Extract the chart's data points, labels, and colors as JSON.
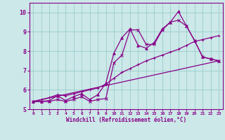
{
  "xlabel": "Windchill (Refroidissement éolien,°C)",
  "bg_color": "#cce8e8",
  "grid_color": "#99cccc",
  "line_color": "#880088",
  "xlim": [
    -0.5,
    23.5
  ],
  "ylim": [
    5.0,
    10.5
  ],
  "xticks": [
    0,
    1,
    2,
    3,
    4,
    5,
    6,
    7,
    8,
    9,
    10,
    11,
    12,
    13,
    14,
    15,
    16,
    17,
    18,
    19,
    20,
    21,
    22,
    23
  ],
  "yticks": [
    5,
    6,
    7,
    8,
    9,
    10
  ],
  "line1_x": [
    0,
    1,
    2,
    3,
    4,
    5,
    6,
    7,
    8,
    9,
    10,
    11,
    12,
    13,
    14,
    15,
    16,
    17,
    18,
    19,
    20,
    21,
    22,
    23
  ],
  "line1_y": [
    5.4,
    5.4,
    5.4,
    5.5,
    5.4,
    5.5,
    5.65,
    5.4,
    5.5,
    5.55,
    7.4,
    7.8,
    9.1,
    9.1,
    8.35,
    8.35,
    9.1,
    9.5,
    9.6,
    9.3,
    8.55,
    7.7,
    7.6,
    7.5
  ],
  "line2_x": [
    0,
    1,
    2,
    3,
    4,
    5,
    6,
    7,
    8,
    9,
    10,
    11,
    12,
    13,
    14,
    15,
    16,
    17,
    18,
    19,
    20,
    21,
    22,
    23
  ],
  "line2_y": [
    5.4,
    5.4,
    5.45,
    5.7,
    5.45,
    5.65,
    5.8,
    5.5,
    5.75,
    6.35,
    7.9,
    8.7,
    9.15,
    8.3,
    8.15,
    8.45,
    9.15,
    9.5,
    10.05,
    9.3,
    8.55,
    7.7,
    7.6,
    7.5
  ],
  "line3_x": [
    0,
    1,
    2,
    3,
    4,
    5,
    6,
    7,
    8,
    9,
    10,
    11,
    12,
    13,
    14,
    15,
    16,
    17,
    18,
    19,
    20,
    21,
    22,
    23
  ],
  "line3_y": [
    5.4,
    5.5,
    5.6,
    5.75,
    5.7,
    5.8,
    5.9,
    6.0,
    6.1,
    6.3,
    6.6,
    6.9,
    7.1,
    7.3,
    7.5,
    7.65,
    7.8,
    7.95,
    8.1,
    8.3,
    8.5,
    8.6,
    8.7,
    8.8
  ],
  "line4_x": [
    0,
    23
  ],
  "line4_y": [
    5.4,
    7.5
  ]
}
